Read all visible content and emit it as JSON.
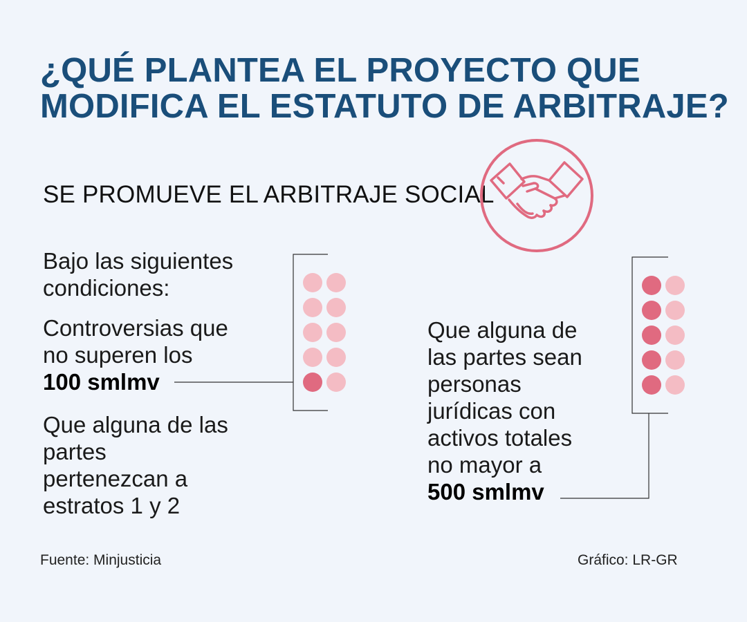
{
  "title": {
    "line1": "¿QUÉ PLANTEA EL PROYECTO QUE",
    "line2": "MODIFICA EL ESTATUTO DE ARBITRAJE?"
  },
  "subtitle": "SE PROMUEVE EL ARBITRAJE SOCIAL",
  "icon": "handshake-icon",
  "colors": {
    "title": "#1a4e7a",
    "accent": "#e06a80",
    "dot_filled": "#e06a80",
    "dot_empty": "#f4bcc4",
    "background": "#f1f5fb"
  },
  "left": {
    "intro_line1": "Bajo las siguientes",
    "intro_line2": "condiciones:",
    "cond1_line1": "Controversias que",
    "cond1_line2": "no superen los",
    "cond1_value": "100 smlmv",
    "cond2_line1": "Que alguna de las",
    "cond2_line2": "partes",
    "cond2_line3": "pertenezcan a",
    "cond2_line4": "estratos 1 y 2",
    "dots_filled": 1,
    "dots_total": 10
  },
  "right": {
    "line1": "Que alguna de",
    "line2": "las partes sean",
    "line3": "personas",
    "line4": "jurídicas con",
    "line5": "activos totales",
    "line6": "no mayor a",
    "value": "500 smlmv",
    "dots_filled": 5,
    "dots_total": 10
  },
  "footer": {
    "source": "Fuente: Minjusticia",
    "credit": "Gráfico: LR-GR"
  }
}
